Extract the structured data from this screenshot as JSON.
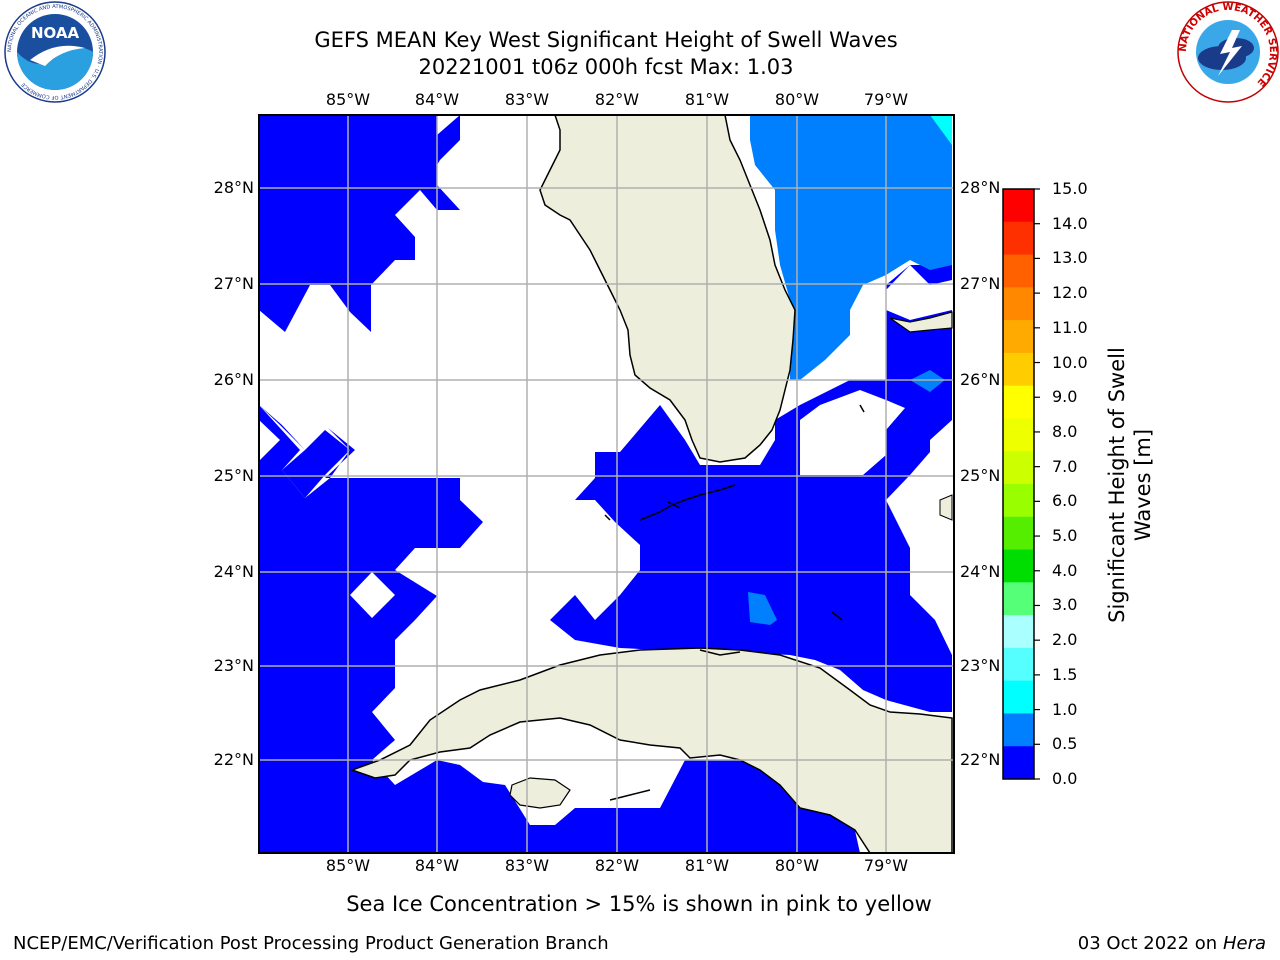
{
  "header": {
    "title_line1": "GEFS MEAN Key West Significant Height of Swell Waves",
    "title_line2": "20221001 t06z 000h fcst   Max: 1.03"
  },
  "logos": {
    "noaa_text": "NOAA",
    "noaa_ring_text": "NATIONAL OCEANIC AND ATMOSPHERIC ADMINISTRATION · U.S. DEPARTMENT OF COMMERCE",
    "nws_ring_text": "NATIONAL WEATHER SERVICE"
  },
  "map": {
    "lon_labels": [
      "85°W",
      "84°W",
      "83°W",
      "82°W",
      "81°W",
      "80°W",
      "79°W"
    ],
    "lat_labels": [
      "28°N",
      "27°N",
      "26°N",
      "25°N",
      "24°N",
      "23°N",
      "22°N"
    ],
    "extent": {
      "lon_min": -86.0,
      "lon_max": -78.25,
      "lat_min": 21.0,
      "lat_max": 28.75
    },
    "colors": {
      "land": "#eeeedc",
      "water_no_data": "#ffffff",
      "swell_0_0_5": "#0000ff",
      "swell_0_5_1_0": "#0080ff",
      "swell_1_0_1_5": "#00ffff",
      "grid": "#b0b0b0"
    }
  },
  "colorbar": {
    "label_line1": "Significant Height of Swell",
    "label_line2": "Waves [m]",
    "ticks": [
      "15.0",
      "14.0",
      "13.0",
      "12.0",
      "11.0",
      "10.0",
      "9.0",
      "8.0",
      "7.0",
      "6.0",
      "5.0",
      "4.0",
      "3.0",
      "2.0",
      "1.5",
      "1.0",
      "0.5",
      "0.0"
    ],
    "colors_top_to_bottom": [
      "#ff0000",
      "#ff3000",
      "#ff6000",
      "#ff8800",
      "#ffaa00",
      "#ffcc00",
      "#ffff00",
      "#eeff00",
      "#ccff00",
      "#99ff00",
      "#55ee00",
      "#00dd00",
      "#55ff77",
      "#aaffff",
      "#55ffff",
      "#00ffff",
      "#0080ff",
      "#0000ff"
    ]
  },
  "notes": {
    "sea_ice": "Sea Ice Concentration > 15% is shown in pink to yellow"
  },
  "footer": {
    "left": "NCEP/EMC/Verification Post Processing Product Generation Branch",
    "right_date": "03 Oct 2022 on ",
    "right_machine": "Hera"
  }
}
